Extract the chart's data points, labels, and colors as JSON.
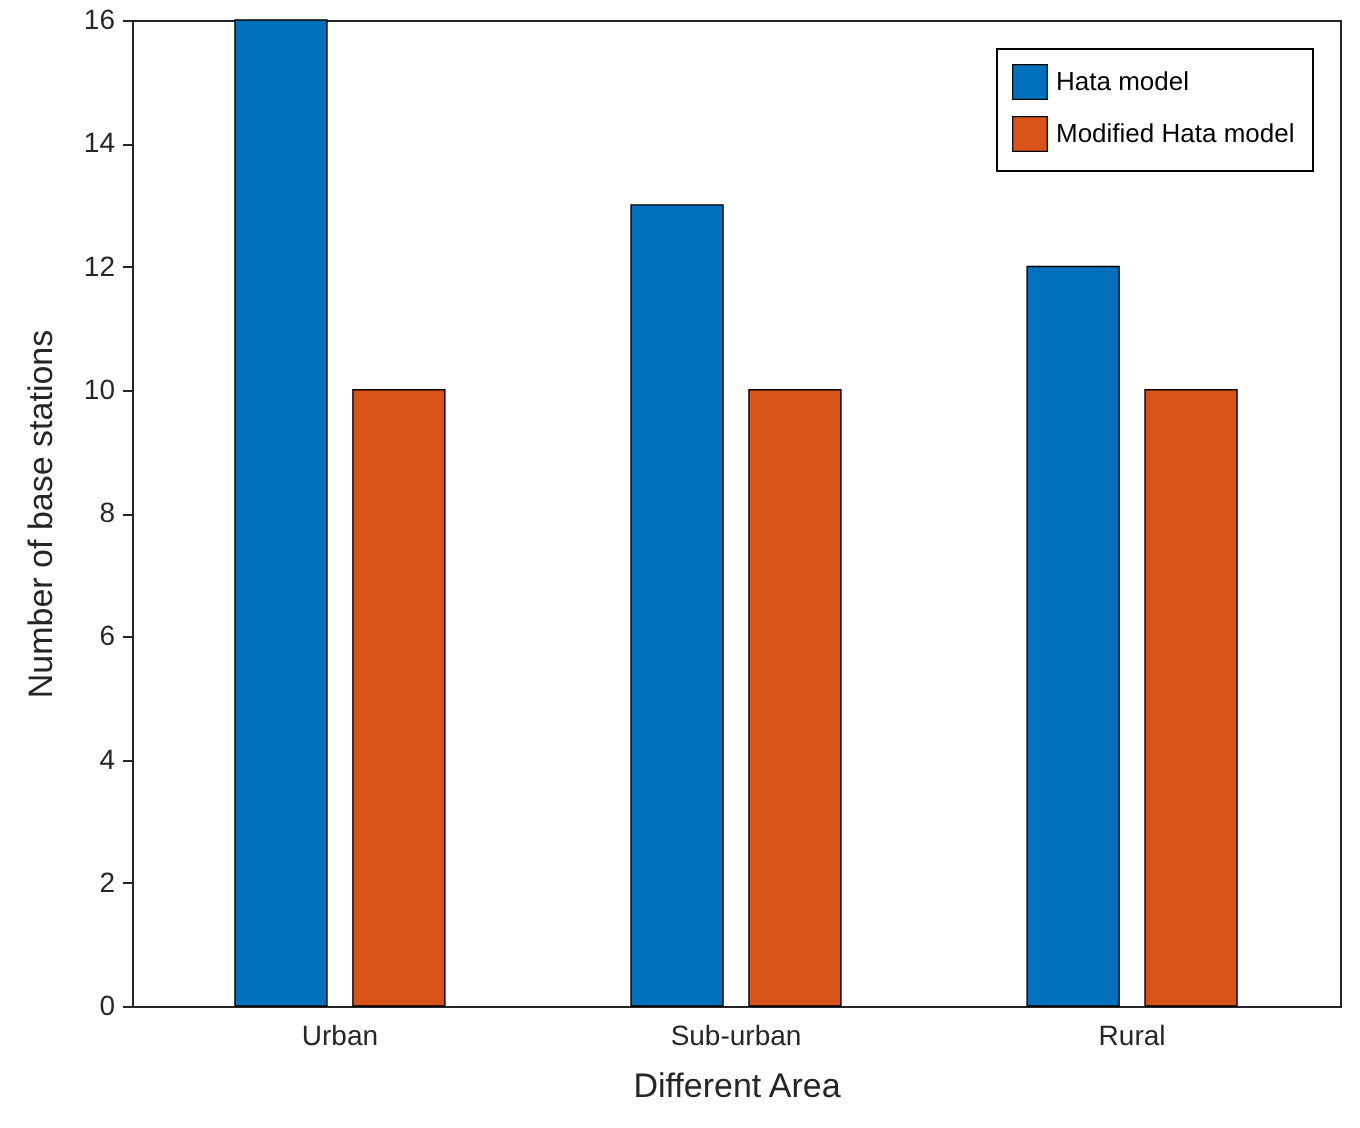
{
  "chart_data": {
    "type": "bar",
    "xlabel": "Different Area",
    "ylabel": "Number of base stations",
    "categories": [
      "Urban",
      "Sub-urban",
      "Rural"
    ],
    "series": [
      {
        "name": "Hata model",
        "color": "#0072bd",
        "values": [
          16,
          13,
          12
        ]
      },
      {
        "name": "Modified Hata model",
        "color": "#d95319",
        "values": [
          10,
          10,
          10
        ]
      }
    ],
    "ylim": [
      0,
      16
    ],
    "yticks": [
      0,
      2,
      4,
      6,
      8,
      10,
      12,
      14,
      16
    ],
    "grid": false,
    "legend": "top right"
  }
}
